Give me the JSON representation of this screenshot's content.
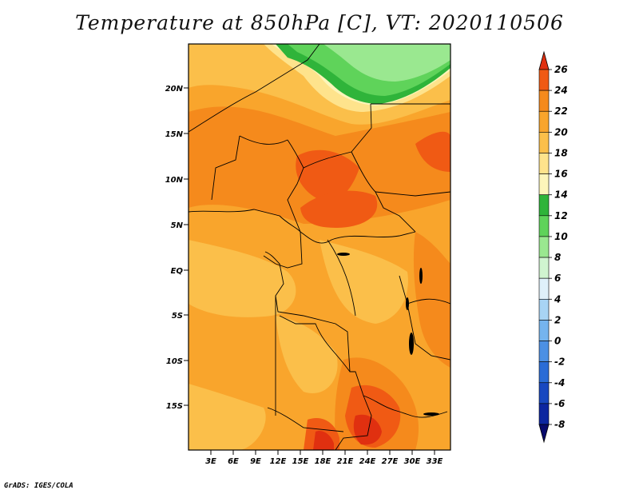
{
  "title": "Temperature at 850hPa [C], VT: 2020110506",
  "credit": "GrADS: IGES/COLA",
  "map": {
    "lat_labels": [
      "20N",
      "15N",
      "10N",
      "5N",
      "EQ",
      "5S",
      "10S",
      "15S"
    ],
    "lon_labels": [
      "3E",
      "6E",
      "9E",
      "12E",
      "15E",
      "18E",
      "21E",
      "24E",
      "27E",
      "30E",
      "33E"
    ]
  },
  "colorbar": {
    "labels": [
      "26",
      "24",
      "22",
      "20",
      "18",
      "16",
      "14",
      "12",
      "10",
      "8",
      "6",
      "4",
      "2",
      "0",
      "-2",
      "-4",
      "-6",
      "-8"
    ],
    "colors": [
      "#e03010",
      "#f05a14",
      "#f58a1c",
      "#f9a52c",
      "#fbbf4a",
      "#fee38c",
      "#fdf5ba",
      "#2fb43a",
      "#5fd35a",
      "#9ae890",
      "#d0f4d0",
      "#dff0fa",
      "#a8d4f4",
      "#75b4ee",
      "#4c90e4",
      "#2a6cd6",
      "#1848c0",
      "#0c26a0",
      "#070a6c"
    ]
  }
}
